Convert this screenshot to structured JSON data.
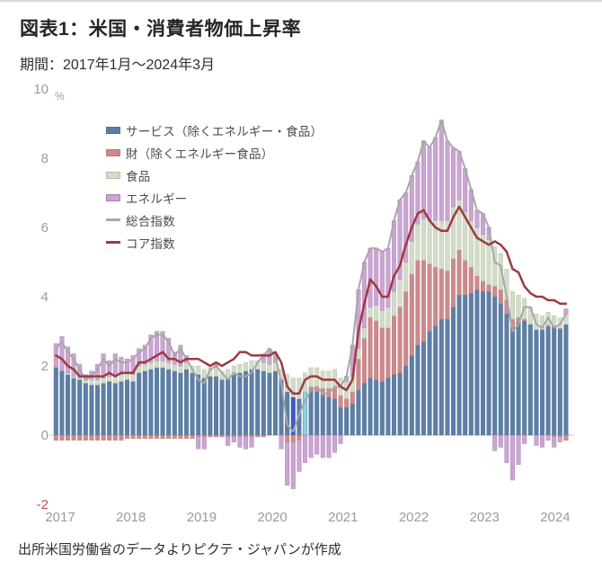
{
  "header": {
    "title": "図表1：米国・消費者物価上昇率",
    "subtitle": "期間：2017年1月～2024年3月"
  },
  "footer": {
    "source": "出所米国労働省のデータよりピクテ・ジャパンが作成"
  },
  "chart_data": {
    "type": "bar",
    "subtype": "stacked-bar-with-lines",
    "title": "図表1：米国・消費者物価上昇率",
    "period": "2017年1月～2024年3月",
    "unit": "%",
    "x_start": "2017-01",
    "x_end": "2024-03",
    "frequency": "monthly",
    "ylim": [
      -2,
      10
    ],
    "y_ticks": [
      10,
      8,
      6,
      4,
      2,
      0,
      -2
    ],
    "x_tick_years": [
      "2017",
      "2018",
      "2019",
      "2020",
      "2021",
      "2022",
      "2023",
      "2024"
    ],
    "grid": false,
    "legend_position": "upper-left-inside",
    "axis_colors": {
      "tick": "#9b9b9b",
      "negative_tick": "#c0504d",
      "zero_line": "#c9c9c9"
    },
    "highlight_bars": [
      {
        "index": 40,
        "color": "#4356c5",
        "note": "royal-blue highlighted bar"
      },
      {
        "index": 42,
        "color": "#8fd2e5",
        "note": "cyan highlighted bar"
      }
    ],
    "series": [
      {
        "name": "サービス（除くエネルギー・食品）",
        "type": "bar",
        "color": "#5d7fa5",
        "border": "#4e6f93",
        "values": [
          1.95,
          1.85,
          1.75,
          1.65,
          1.6,
          1.5,
          1.45,
          1.45,
          1.5,
          1.55,
          1.5,
          1.55,
          1.6,
          1.55,
          1.8,
          1.85,
          1.9,
          1.95,
          1.95,
          1.9,
          1.85,
          1.8,
          1.9,
          1.8,
          1.75,
          1.65,
          1.7,
          1.7,
          1.6,
          1.65,
          1.75,
          1.8,
          1.85,
          1.9,
          1.9,
          1.85,
          1.8,
          1.85,
          1.6,
          1.25,
          1.1,
          1.05,
          1.25,
          1.3,
          1.25,
          1.15,
          1.1,
          1.05,
          0.8,
          0.8,
          0.9,
          1.3,
          1.5,
          1.65,
          1.6,
          1.55,
          1.65,
          1.75,
          1.8,
          2.0,
          2.3,
          2.6,
          2.7,
          3.0,
          3.15,
          3.35,
          3.35,
          3.7,
          4.05,
          4.05,
          4.1,
          4.2,
          4.15,
          4.15,
          4.0,
          3.8,
          3.5,
          3.1,
          3.25,
          3.3,
          3.2,
          3.05,
          3.05,
          3.13,
          3.15,
          3.08,
          3.2
        ]
      },
      {
        "name": "財（除くエネルギー食品）",
        "type": "bar",
        "color": "#cc8a8c",
        "border": "#b9797c",
        "values": [
          -0.15,
          -0.15,
          -0.15,
          -0.15,
          -0.15,
          -0.15,
          -0.15,
          -0.15,
          -0.15,
          -0.15,
          -0.15,
          -0.15,
          -0.1,
          -0.1,
          -0.1,
          -0.1,
          -0.1,
          -0.1,
          -0.1,
          -0.1,
          -0.1,
          -0.1,
          -0.1,
          -0.1,
          -0.05,
          -0.05,
          -0.05,
          -0.05,
          -0.05,
          -0.05,
          -0.05,
          -0.05,
          -0.05,
          -0.05,
          -0.05,
          -0.05,
          0.0,
          0.0,
          0.0,
          -0.2,
          -0.2,
          -0.15,
          0.0,
          0.1,
          0.15,
          0.2,
          0.25,
          0.35,
          0.35,
          0.25,
          0.35,
          0.9,
          1.3,
          1.75,
          1.7,
          1.55,
          1.45,
          1.7,
          1.9,
          2.15,
          2.35,
          2.45,
          2.35,
          1.95,
          1.7,
          1.45,
          1.4,
          1.4,
          1.3,
          1.0,
          0.75,
          0.4,
          0.3,
          0.2,
          0.3,
          0.4,
          0.4,
          0.25,
          0.15,
          0.05,
          0.0,
          0.0,
          0.0,
          0.05,
          -0.05,
          -0.05,
          -0.15
        ]
      },
      {
        "name": "食品",
        "type": "bar",
        "color": "#d3dcc8",
        "border": "#aebfa2",
        "values": [
          0.0,
          0.0,
          0.05,
          0.05,
          0.05,
          0.1,
          0.15,
          0.15,
          0.15,
          0.15,
          0.2,
          0.2,
          0.2,
          0.2,
          0.2,
          0.2,
          0.2,
          0.2,
          0.2,
          0.2,
          0.2,
          0.2,
          0.2,
          0.2,
          0.25,
          0.25,
          0.25,
          0.25,
          0.25,
          0.25,
          0.25,
          0.25,
          0.25,
          0.25,
          0.25,
          0.25,
          0.25,
          0.25,
          0.3,
          0.5,
          0.55,
          0.6,
          0.55,
          0.55,
          0.55,
          0.5,
          0.5,
          0.5,
          0.5,
          0.5,
          0.45,
          0.3,
          0.3,
          0.3,
          0.45,
          0.5,
          0.6,
          0.7,
          0.8,
          0.85,
          0.95,
          1.05,
          1.2,
          1.25,
          1.35,
          1.4,
          1.45,
          1.5,
          1.45,
          1.4,
          1.35,
          1.4,
          1.35,
          1.3,
          1.15,
          1.05,
          0.9,
          0.8,
          0.65,
          0.6,
          0.5,
          0.45,
          0.4,
          0.37,
          0.3,
          0.3,
          0.3
        ]
      },
      {
        "name": "エネルギー",
        "type": "bar",
        "color": "#cba5d1",
        "border": "#a980b4",
        "values": [
          0.7,
          1.0,
          0.75,
          0.65,
          0.4,
          0.15,
          0.25,
          0.45,
          0.7,
          0.45,
          0.65,
          0.5,
          0.4,
          0.55,
          0.5,
          0.55,
          0.8,
          0.85,
          0.85,
          0.7,
          0.35,
          0.6,
          0.2,
          0.0,
          -0.35,
          -0.35,
          0.0,
          0.1,
          0.0,
          -0.25,
          -0.15,
          -0.3,
          -0.35,
          -0.3,
          0.0,
          0.25,
          0.45,
          0.2,
          -0.4,
          -1.25,
          -1.35,
          -0.9,
          -0.8,
          -0.65,
          -0.55,
          -0.65,
          -0.65,
          -0.5,
          -0.25,
          0.15,
          0.9,
          1.7,
          1.9,
          1.7,
          1.65,
          1.7,
          1.7,
          2.05,
          2.3,
          2.0,
          1.9,
          1.8,
          2.25,
          2.1,
          2.4,
          2.9,
          2.3,
          1.7,
          1.4,
          1.25,
          0.9,
          0.5,
          0.6,
          0.35,
          -0.45,
          -0.35,
          -0.8,
          -1.3,
          -0.85,
          -0.25,
          0.0,
          -0.3,
          -0.35,
          -0.15,
          -0.3,
          -0.15,
          0.15
        ]
      },
      {
        "name": "総合指数",
        "type": "line",
        "color": "#a7a7ab",
        "width": 2,
        "values": [
          2.5,
          2.7,
          2.4,
          2.2,
          1.9,
          1.6,
          1.7,
          1.9,
          2.2,
          2.0,
          2.2,
          2.1,
          2.1,
          2.2,
          2.4,
          2.5,
          2.8,
          2.9,
          2.9,
          2.7,
          2.3,
          2.5,
          2.2,
          1.9,
          1.6,
          1.5,
          1.9,
          2.0,
          1.8,
          1.6,
          1.8,
          1.7,
          1.7,
          1.8,
          2.1,
          2.3,
          2.5,
          2.3,
          1.5,
          0.3,
          0.1,
          0.6,
          1.0,
          1.3,
          1.4,
          1.2,
          1.2,
          1.4,
          1.4,
          1.7,
          2.6,
          4.2,
          5.0,
          5.4,
          5.4,
          5.3,
          5.4,
          6.2,
          6.8,
          7.0,
          7.5,
          7.9,
          8.5,
          8.3,
          8.6,
          9.1,
          8.5,
          8.3,
          8.2,
          7.7,
          7.1,
          6.5,
          6.4,
          6.0,
          5.0,
          4.9,
          4.0,
          3.0,
          3.2,
          3.7,
          3.7,
          3.2,
          3.1,
          3.4,
          3.1,
          3.2,
          3.5
        ]
      },
      {
        "name": "コア指数",
        "type": "line",
        "color": "#9e3a40",
        "width": 2.5,
        "values": [
          2.3,
          2.2,
          2.0,
          1.9,
          1.7,
          1.7,
          1.7,
          1.7,
          1.7,
          1.8,
          1.7,
          1.8,
          1.8,
          1.8,
          2.1,
          2.1,
          2.2,
          2.3,
          2.4,
          2.2,
          2.2,
          2.1,
          2.2,
          2.2,
          2.2,
          2.1,
          2.0,
          2.1,
          2.0,
          2.1,
          2.2,
          2.4,
          2.4,
          2.3,
          2.3,
          2.3,
          2.3,
          2.4,
          2.1,
          1.4,
          1.2,
          1.2,
          1.6,
          1.7,
          1.7,
          1.6,
          1.6,
          1.6,
          1.4,
          1.3,
          1.6,
          3.0,
          3.8,
          4.5,
          4.3,
          4.0,
          4.0,
          4.6,
          4.9,
          5.5,
          6.0,
          6.4,
          6.5,
          6.2,
          6.0,
          5.9,
          5.9,
          6.3,
          6.6,
          6.3,
          6.0,
          5.7,
          5.6,
          5.5,
          5.6,
          5.5,
          5.3,
          4.8,
          4.7,
          4.3,
          4.1,
          4.0,
          4.0,
          3.9,
          3.9,
          3.8,
          3.8
        ]
      }
    ]
  }
}
